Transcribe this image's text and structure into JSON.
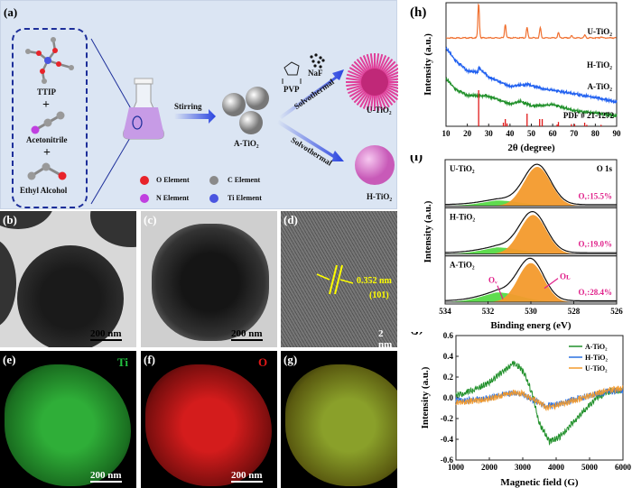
{
  "panel_a": {
    "label": "(a)",
    "reagents": [
      "TTIP",
      "Acetonitrile",
      "Ethyl Alcohol"
    ],
    "plus": "+",
    "stirring": "Stirring",
    "a_tio2": "A-TiO₂",
    "pvp": "PVP",
    "naf": "NaF",
    "solvothermal": "Solvothermal",
    "u_tio2": "U-TiO₂",
    "h_tio2": "H-TiO₂",
    "legend": [
      {
        "label": "O Element",
        "color": "#e8232a"
      },
      {
        "label": "C Element",
        "color": "#8a8a8a"
      },
      {
        "label": "N Element",
        "color": "#c040e0"
      },
      {
        "label": "Ti Element",
        "color": "#4a55e0"
      }
    ]
  },
  "panel_b": {
    "label": "(b)",
    "scale": "200 nm"
  },
  "panel_c": {
    "label": "(c)",
    "scale": "200 nm"
  },
  "panel_d": {
    "label": "(d)",
    "spacing": "0.352 nm",
    "plane": "(101)",
    "scale": "2 nm"
  },
  "panel_e": {
    "label": "(e)",
    "element": "Ti",
    "scale": "200 nm",
    "color": "#22c040"
  },
  "panel_f": {
    "label": "(f)",
    "element": "O",
    "scale": "200 nm",
    "color": "#e01818"
  },
  "panel_g": {
    "label": "(g)"
  },
  "chart_data": [
    {
      "panel": "(h)",
      "type": "line",
      "xlabel": "2θ (degree)",
      "ylabel": "Intensity (a.u.)",
      "xlim": [
        10,
        90
      ],
      "xticks": [
        10,
        20,
        30,
        40,
        50,
        60,
        70,
        80,
        90
      ],
      "series": [
        {
          "name": "U-TiO₂",
          "color": "#f07030",
          "peaks": [
            [
              25.3,
              1.0
            ],
            [
              37.8,
              0.4
            ],
            [
              48.0,
              0.3
            ],
            [
              54.2,
              0.3
            ],
            [
              62.7,
              0.15
            ],
            [
              68.9,
              0.06
            ],
            [
              75.1,
              0.08
            ],
            [
              82.7,
              0.03
            ]
          ]
        },
        {
          "name": "H-TiO₂",
          "color": "#2060f0",
          "points": [
            [
              10,
              1.0
            ],
            [
              15,
              0.82
            ],
            [
              20,
              0.7
            ],
            [
              25,
              0.68
            ],
            [
              25.3,
              0.74
            ],
            [
              30,
              0.62
            ],
            [
              40,
              0.5
            ],
            [
              48,
              0.52
            ],
            [
              55,
              0.47
            ],
            [
              70,
              0.4
            ],
            [
              90,
              0.3
            ]
          ]
        },
        {
          "name": "A-TiO₂",
          "color": "#20902a",
          "points": [
            [
              10,
              0.6
            ],
            [
              15,
              0.45
            ],
            [
              20,
              0.38
            ],
            [
              30,
              0.37
            ],
            [
              40,
              0.27
            ],
            [
              45,
              0.3
            ],
            [
              50,
              0.24
            ],
            [
              60,
              0.26
            ],
            [
              70,
              0.18
            ],
            [
              80,
              0.15
            ],
            [
              90,
              0.12
            ]
          ]
        }
      ],
      "reference": {
        "name": "PDF # 21-1272",
        "color": "#e01818",
        "lines": [
          [
            25.3,
            1.0
          ],
          [
            36.9,
            0.1
          ],
          [
            37.8,
            0.2
          ],
          [
            38.6,
            0.08
          ],
          [
            48.0,
            0.35
          ],
          [
            53.9,
            0.2
          ],
          [
            55.1,
            0.2
          ],
          [
            62.1,
            0.05
          ],
          [
            62.7,
            0.12
          ],
          [
            68.8,
            0.06
          ],
          [
            70.3,
            0.06
          ],
          [
            75.0,
            0.1
          ],
          [
            76.0,
            0.04
          ],
          [
            82.7,
            0.04
          ]
        ]
      }
    },
    {
      "panel": "(i)",
      "type": "area",
      "title": "O 1s",
      "xlabel": "Binding energ (eV)",
      "ylabel": "Intensity (a.u.)",
      "xlim": [
        534,
        526
      ],
      "xticks": [
        534,
        532,
        530,
        528,
        526
      ],
      "series": [
        {
          "name": "U-TiO₂",
          "ov_label": "Oᵥ:15.5%",
          "ol_center": 529.7,
          "ol_sigma": 0.62,
          "ov_center": 531.6,
          "ov_sigma": 1.1,
          "ov_amp": 0.14
        },
        {
          "name": "H-TiO₂",
          "ov_label": "Oᵥ:19.0%",
          "ol_center": 529.9,
          "ol_sigma": 0.62,
          "ov_center": 531.6,
          "ov_sigma": 1.1,
          "ov_amp": 0.17
        },
        {
          "name": "A-TiO₂",
          "ov_label": "Oᵥ:28.4%",
          "ol_center": 530.0,
          "ol_sigma": 0.6,
          "ov_center": 531.6,
          "ov_sigma": 1.1,
          "ov_amp": 0.25
        }
      ],
      "annotations": {
        "ov": "Oᵥ",
        "ol": "Oʟ"
      },
      "colors": {
        "ol": "#f39a2c",
        "ov": "#5fdc4f",
        "label": "#e0208a"
      }
    },
    {
      "panel": "(j)",
      "type": "line",
      "xlabel": "Magnetic field (G)",
      "ylabel": "Intensity (a.u.)",
      "xlim": [
        1000,
        6000
      ],
      "ylim": [
        -0.6,
        0.6
      ],
      "xticks": [
        1000,
        2000,
        3000,
        4000,
        5000,
        6000
      ],
      "yticks": [
        -0.6,
        -0.4,
        -0.2,
        0.0,
        0.2,
        0.4,
        0.6
      ],
      "legend": "top-right",
      "series": [
        {
          "name": "A-TiO₂",
          "color": "#20902a",
          "points": [
            [
              1000,
              0.02
            ],
            [
              1500,
              0.07
            ],
            [
              2000,
              0.15
            ],
            [
              2400,
              0.25
            ],
            [
              2700,
              0.33
            ],
            [
              2900,
              0.3
            ],
            [
              3100,
              0.2
            ],
            [
              3300,
              0.02
            ],
            [
              3500,
              -0.25
            ],
            [
              3800,
              -0.42
            ],
            [
              4100,
              -0.38
            ],
            [
              4500,
              -0.24
            ],
            [
              4900,
              -0.1
            ],
            [
              5200,
              0.0
            ],
            [
              5600,
              0.06
            ],
            [
              6000,
              0.07
            ]
          ]
        },
        {
          "name": "H-TiO₂",
          "color": "#2a70e0",
          "points": [
            [
              1000,
              -0.03
            ],
            [
              1500,
              -0.02
            ],
            [
              2000,
              0.0
            ],
            [
              2700,
              0.05
            ],
            [
              3000,
              0.03
            ],
            [
              3300,
              -0.02
            ],
            [
              3700,
              -0.08
            ],
            [
              4100,
              -0.06
            ],
            [
              4600,
              -0.01
            ],
            [
              5000,
              0.02
            ],
            [
              5500,
              0.06
            ],
            [
              6000,
              0.07
            ]
          ]
        },
        {
          "name": "U-TiO₂",
          "color": "#f39a2c",
          "points": [
            [
              1000,
              -0.05
            ],
            [
              1500,
              -0.03
            ],
            [
              2000,
              -0.01
            ],
            [
              2700,
              0.05
            ],
            [
              3000,
              0.04
            ],
            [
              3300,
              -0.01
            ],
            [
              3700,
              -0.09
            ],
            [
              4100,
              -0.07
            ],
            [
              4600,
              -0.02
            ],
            [
              5000,
              0.02
            ],
            [
              5500,
              0.07
            ],
            [
              6000,
              0.09
            ]
          ]
        }
      ]
    }
  ]
}
